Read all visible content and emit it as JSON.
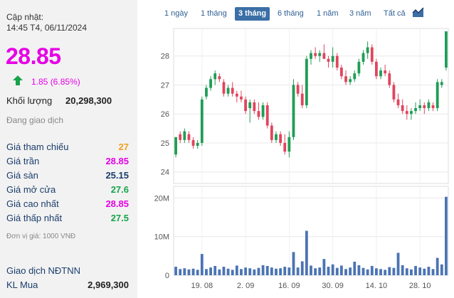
{
  "info": {
    "updated_label": "Cập nhật:",
    "updated_time": "14:45 T4, 06/11/2024",
    "price": "28.85",
    "change": "1.85 (6.85%)",
    "volume_label": "Khối lượng",
    "volume_value": "20,298,300",
    "status": "Đang giao dịch",
    "rows": [
      {
        "label": "Giá tham chiếu",
        "value": "27",
        "color": "#f0a020"
      },
      {
        "label": "Giá trần",
        "value": "28.85",
        "color": "#e600e6"
      },
      {
        "label": "Giá sàn",
        "value": "25.15",
        "color": "#1a3d6b"
      },
      {
        "label": "Giá mở cửa",
        "value": "27.6",
        "color": "#17a34a"
      },
      {
        "label": "Giá cao nhất",
        "value": "28.85",
        "color": "#e600e6"
      },
      {
        "label": "Giá thấp nhất",
        "value": "27.5",
        "color": "#17a34a"
      }
    ],
    "unit_note": "Đơn vị giá: 1000 VNĐ",
    "foreign_title": "Giao dịch NĐTNN",
    "kl_mua_label": "KL Mua",
    "kl_mua_value": "2,969,300",
    "up_icon": "arrow-up-icon"
  },
  "tabs": [
    {
      "label": "1 ngày",
      "active": false
    },
    {
      "label": "1 tháng",
      "active": false
    },
    {
      "label": "3 tháng",
      "active": true
    },
    {
      "label": "6 tháng",
      "active": false
    },
    {
      "label": "1 năm",
      "active": false
    },
    {
      "label": "3 năm",
      "active": false
    },
    {
      "label": "Tất cả",
      "active": false
    }
  ],
  "chart_icon": "area-chart-icon",
  "chart_data": {
    "type": "candlestick",
    "colors": {
      "up": "#1f9d55",
      "down": "#e0455e",
      "volume": "#4b74b3"
    },
    "price_axis": {
      "ticks": [
        24,
        25,
        26,
        27,
        28
      ],
      "range": [
        23.6,
        28.95
      ]
    },
    "volume_axis": {
      "ticks": [
        "0",
        "10M",
        "20M"
      ],
      "tick_values": [
        0,
        10,
        20
      ],
      "range": [
        0,
        23
      ],
      "unit": "M"
    },
    "x_tick_labels": [
      {
        "label": "19. 08",
        "index": 6
      },
      {
        "label": "2. 09",
        "index": 16
      },
      {
        "label": "16. 09",
        "index": 26
      },
      {
        "label": "30. 09",
        "index": 36
      },
      {
        "label": "14. 10",
        "index": 46
      },
      {
        "label": "28. 10",
        "index": 56
      }
    ],
    "candles": [
      {
        "o": 24.6,
        "h": 25.2,
        "l": 24.5,
        "c": 25.2,
        "v": 2.2
      },
      {
        "o": 25.3,
        "h": 25.4,
        "l": 25.0,
        "c": 25.1,
        "v": 1.6
      },
      {
        "o": 25.1,
        "h": 25.5,
        "l": 25.0,
        "c": 25.4,
        "v": 1.8
      },
      {
        "o": 25.3,
        "h": 25.4,
        "l": 25.0,
        "c": 25.1,
        "v": 1.5
      },
      {
        "o": 25.1,
        "h": 25.2,
        "l": 24.8,
        "c": 24.9,
        "v": 1.7
      },
      {
        "o": 24.9,
        "h": 25.1,
        "l": 24.8,
        "c": 25.0,
        "v": 1.4
      },
      {
        "o": 25.0,
        "h": 26.6,
        "l": 24.9,
        "c": 26.5,
        "v": 5.5
      },
      {
        "o": 26.6,
        "h": 27.0,
        "l": 26.5,
        "c": 26.9,
        "v": 1.6
      },
      {
        "o": 26.9,
        "h": 27.3,
        "l": 26.8,
        "c": 27.2,
        "v": 2.0
      },
      {
        "o": 27.2,
        "h": 27.5,
        "l": 27.0,
        "c": 27.4,
        "v": 2.4
      },
      {
        "o": 27.3,
        "h": 27.4,
        "l": 27.1,
        "c": 27.2,
        "v": 1.5
      },
      {
        "o": 27.1,
        "h": 27.2,
        "l": 26.6,
        "c": 26.7,
        "v": 2.2
      },
      {
        "o": 26.7,
        "h": 27.0,
        "l": 26.6,
        "c": 26.9,
        "v": 1.7
      },
      {
        "o": 26.9,
        "h": 27.1,
        "l": 26.6,
        "c": 26.7,
        "v": 1.4
      },
      {
        "o": 26.7,
        "h": 26.8,
        "l": 26.4,
        "c": 26.6,
        "v": 2.5
      },
      {
        "o": 26.6,
        "h": 26.8,
        "l": 26.4,
        "c": 26.5,
        "v": 1.6
      },
      {
        "o": 26.5,
        "h": 26.6,
        "l": 26.0,
        "c": 26.1,
        "v": 2.0
      },
      {
        "o": 26.2,
        "h": 26.5,
        "l": 25.7,
        "c": 26.4,
        "v": 1.8
      },
      {
        "o": 26.4,
        "h": 26.5,
        "l": 26.0,
        "c": 26.1,
        "v": 1.5
      },
      {
        "o": 26.1,
        "h": 26.4,
        "l": 25.8,
        "c": 25.9,
        "v": 1.9
      },
      {
        "o": 25.9,
        "h": 26.4,
        "l": 25.8,
        "c": 26.3,
        "v": 2.6
      },
      {
        "o": 26.3,
        "h": 26.4,
        "l": 25.5,
        "c": 25.6,
        "v": 2.4
      },
      {
        "o": 25.6,
        "h": 25.7,
        "l": 25.0,
        "c": 25.1,
        "v": 2.0
      },
      {
        "o": 25.1,
        "h": 25.4,
        "l": 25.0,
        "c": 25.3,
        "v": 1.7
      },
      {
        "o": 25.3,
        "h": 25.4,
        "l": 24.9,
        "c": 25.0,
        "v": 1.8
      },
      {
        "o": 25.0,
        "h": 25.3,
        "l": 24.6,
        "c": 24.7,
        "v": 2.2
      },
      {
        "o": 24.7,
        "h": 25.4,
        "l": 24.5,
        "c": 25.2,
        "v": 2.0
      },
      {
        "o": 25.2,
        "h": 27.2,
        "l": 25.1,
        "c": 27.0,
        "v": 6.0
      },
      {
        "o": 27.0,
        "h": 27.1,
        "l": 26.6,
        "c": 26.7,
        "v": 2.0
      },
      {
        "o": 26.7,
        "h": 27.0,
        "l": 26.2,
        "c": 26.3,
        "v": 3.6
      },
      {
        "o": 26.3,
        "h": 28.0,
        "l": 26.2,
        "c": 27.9,
        "v": 11.5
      },
      {
        "o": 27.9,
        "h": 28.2,
        "l": 27.7,
        "c": 28.1,
        "v": 2.5
      },
      {
        "o": 28.1,
        "h": 28.3,
        "l": 27.9,
        "c": 28.0,
        "v": 1.8
      },
      {
        "o": 28.0,
        "h": 28.2,
        "l": 27.8,
        "c": 28.1,
        "v": 2.0
      },
      {
        "o": 28.1,
        "h": 28.4,
        "l": 27.9,
        "c": 27.9,
        "v": 4.2
      },
      {
        "o": 27.9,
        "h": 28.0,
        "l": 27.6,
        "c": 27.8,
        "v": 2.2
      },
      {
        "o": 27.8,
        "h": 28.3,
        "l": 27.6,
        "c": 28.0,
        "v": 2.8
      },
      {
        "o": 28.0,
        "h": 28.1,
        "l": 27.5,
        "c": 27.6,
        "v": 1.9
      },
      {
        "o": 27.6,
        "h": 27.7,
        "l": 27.2,
        "c": 27.3,
        "v": 2.5
      },
      {
        "o": 27.3,
        "h": 27.5,
        "l": 27.0,
        "c": 27.1,
        "v": 1.6
      },
      {
        "o": 27.1,
        "h": 27.3,
        "l": 27.0,
        "c": 27.2,
        "v": 2.0
      },
      {
        "o": 27.2,
        "h": 27.5,
        "l": 27.1,
        "c": 27.4,
        "v": 3.5
      },
      {
        "o": 27.4,
        "h": 27.9,
        "l": 27.3,
        "c": 27.8,
        "v": 2.6
      },
      {
        "o": 27.8,
        "h": 28.2,
        "l": 27.7,
        "c": 28.1,
        "v": 1.9
      },
      {
        "o": 28.1,
        "h": 28.5,
        "l": 27.9,
        "c": 28.3,
        "v": 1.5
      },
      {
        "o": 28.3,
        "h": 28.4,
        "l": 27.7,
        "c": 27.8,
        "v": 2.4
      },
      {
        "o": 27.8,
        "h": 27.9,
        "l": 27.2,
        "c": 27.3,
        "v": 1.8
      },
      {
        "o": 27.3,
        "h": 27.6,
        "l": 27.2,
        "c": 27.5,
        "v": 1.6
      },
      {
        "o": 27.5,
        "h": 27.7,
        "l": 27.3,
        "c": 27.4,
        "v": 1.4
      },
      {
        "o": 27.4,
        "h": 27.5,
        "l": 26.9,
        "c": 27.0,
        "v": 2.1
      },
      {
        "o": 27.0,
        "h": 27.1,
        "l": 26.4,
        "c": 26.5,
        "v": 1.9
      },
      {
        "o": 26.5,
        "h": 26.7,
        "l": 26.2,
        "c": 26.3,
        "v": 5.8
      },
      {
        "o": 26.3,
        "h": 26.5,
        "l": 26.0,
        "c": 26.1,
        "v": 2.6
      },
      {
        "o": 26.1,
        "h": 26.3,
        "l": 25.8,
        "c": 26.0,
        "v": 1.8
      },
      {
        "o": 26.0,
        "h": 26.2,
        "l": 25.8,
        "c": 26.1,
        "v": 1.5
      },
      {
        "o": 26.1,
        "h": 26.4,
        "l": 26.0,
        "c": 26.2,
        "v": 2.4
      },
      {
        "o": 26.2,
        "h": 26.5,
        "l": 26.1,
        "c": 26.3,
        "v": 2.0
      },
      {
        "o": 26.3,
        "h": 26.4,
        "l": 26.0,
        "c": 26.2,
        "v": 1.7
      },
      {
        "o": 26.2,
        "h": 26.5,
        "l": 26.1,
        "c": 26.4,
        "v": 2.2
      },
      {
        "o": 26.3,
        "h": 26.4,
        "l": 26.1,
        "c": 26.2,
        "v": 1.6
      },
      {
        "o": 26.2,
        "h": 27.2,
        "l": 26.1,
        "c": 27.1,
        "v": 4.5
      },
      {
        "o": 27.0,
        "h": 27.2,
        "l": 26.9,
        "c": 27.1,
        "v": 2.8
      },
      {
        "o": 27.6,
        "h": 28.85,
        "l": 27.5,
        "c": 28.85,
        "v": 20.3
      }
    ]
  }
}
